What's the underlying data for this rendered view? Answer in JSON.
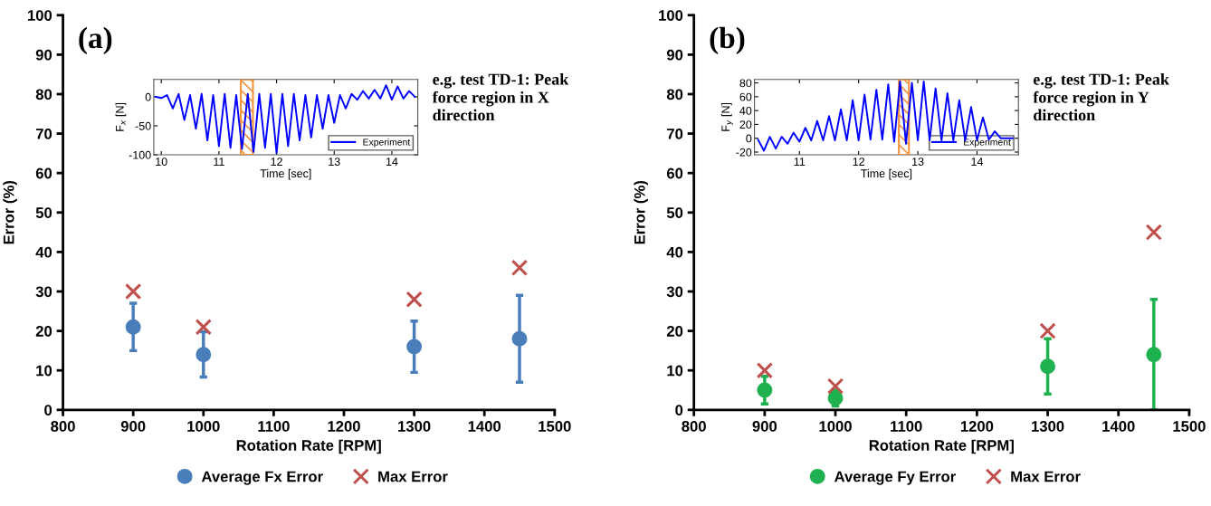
{
  "chart_data": [
    {
      "type": "scatter",
      "title": "(a)",
      "xlabel": "Rotation Rate [RPM]",
      "ylabel": "Error (%)",
      "xlim": [
        800,
        1500
      ],
      "xticks": [
        800,
        900,
        1000,
        1100,
        1200,
        1300,
        1400,
        1500
      ],
      "ylim": [
        0,
        100
      ],
      "yticks": [
        0,
        10,
        20,
        30,
        40,
        50,
        60,
        70,
        80,
        90,
        100
      ],
      "grid": false,
      "legend": "bottom",
      "annotations": [
        "e.g. test TD-1: Peak force region in X direction"
      ],
      "series": [
        {
          "name": "Average Fx Error",
          "color": "#4a7ebb",
          "marker": "circle",
          "x": [
            900,
            1000,
            1300,
            1450
          ],
          "values": [
            21,
            14,
            16,
            18
          ],
          "errors": [
            [
              15,
              27
            ],
            [
              8.3,
              19.8
            ],
            [
              9.5,
              22.5
            ],
            [
              7,
              29
            ]
          ]
        },
        {
          "name": "Max Error",
          "color": "#c0504d",
          "marker": "cross",
          "x": [
            900,
            1000,
            1300,
            1450
          ],
          "values": [
            30,
            21,
            28,
            36
          ]
        }
      ]
    },
    {
      "type": "line",
      "xlabel": "Time [sec]",
      "ylabel": "F$_{x}$ [N]",
      "xlim": [
        9.87,
        14.45
      ],
      "xticks": [
        10,
        11,
        12,
        13,
        14
      ],
      "ylim": [
        -100,
        30
      ],
      "yticks": [
        -100,
        -50,
        0
      ],
      "grid": false,
      "legend": "bottom right",
      "marker": "none",
      "line_style": "solid",
      "bands": [
        {
          "axis": "x",
          "from": 11.38,
          "to": 11.59,
          "color": "#f5923e"
        }
      ],
      "series": [
        {
          "name": "Experiment",
          "color": "#0000ff",
          "x": [
            9.9,
            10.0,
            10.1,
            10.2,
            10.3,
            10.4,
            10.5,
            10.6,
            10.7,
            10.8,
            10.9,
            11.0,
            11.1,
            11.2,
            11.3,
            11.4,
            11.5,
            11.6,
            11.7,
            11.8,
            11.9,
            12.0,
            12.1,
            12.2,
            12.3,
            12.4,
            12.5,
            12.6,
            12.7,
            12.8,
            12.9,
            13.0,
            13.1,
            13.2,
            13.3,
            13.4,
            13.5,
            13.6,
            13.7,
            13.8,
            13.9,
            14.0,
            14.1,
            14.2,
            14.3,
            14.4
          ],
          "values": [
            0,
            -2,
            3,
            -20,
            5,
            -40,
            3,
            -55,
            5,
            -75,
            3,
            -85,
            5,
            -88,
            3,
            -90,
            5,
            -95,
            5,
            -88,
            5,
            -97,
            5,
            -85,
            5,
            -75,
            3,
            -70,
            3,
            -55,
            3,
            -45,
            3,
            -20,
            5,
            -5,
            10,
            -3,
            12,
            -3,
            20,
            -5,
            18,
            -3,
            10,
            0
          ]
        }
      ]
    },
    {
      "type": "scatter",
      "title": "(b)",
      "xlabel": "Rotation Rate [RPM]",
      "ylabel": "Error (%)",
      "xlim": [
        800,
        1500
      ],
      "xticks": [
        800,
        900,
        1000,
        1100,
        1200,
        1300,
        1400,
        1500
      ],
      "ylim": [
        0,
        100
      ],
      "yticks": [
        0,
        10,
        20,
        30,
        40,
        50,
        60,
        70,
        80,
        90,
        100
      ],
      "grid": false,
      "legend": "bottom",
      "annotations": [
        "e.g. test TD-1: Peak force region in Y direction"
      ],
      "series": [
        {
          "name": "Average Fy Error",
          "color": "#1fb14f",
          "marker": "circle",
          "x": [
            900,
            1000,
            1300,
            1450
          ],
          "values": [
            5,
            3,
            11,
            14
          ],
          "errors": [
            [
              1.5,
              8.5
            ],
            [
              1,
              5
            ],
            [
              4,
              18
            ],
            [
              0,
              28
            ]
          ]
        },
        {
          "name": "Max Error",
          "color": "#c0504d",
          "marker": "cross",
          "x": [
            900,
            1000,
            1300,
            1450
          ],
          "values": [
            10,
            6,
            20,
            45
          ]
        }
      ]
    },
    {
      "type": "line",
      "xlabel": "Time [sec]",
      "ylabel": "F$_{y}$ [N]",
      "xlim": [
        10.24,
        14.7
      ],
      "xticks": [
        11,
        12,
        13,
        14
      ],
      "ylim": [
        -24,
        85
      ],
      "yticks": [
        -20,
        0,
        20,
        40,
        60,
        80
      ],
      "grid": false,
      "legend": "bottom right",
      "marker": "none",
      "line_style": "solid",
      "bands": [
        {
          "axis": "x",
          "from": 12.68,
          "to": 12.85,
          "color": "#f5923e"
        }
      ],
      "series": [
        {
          "name": "Experiment",
          "color": "#0000ff",
          "x": [
            10.3,
            10.4,
            10.5,
            10.6,
            10.7,
            10.8,
            10.9,
            11.0,
            11.1,
            11.2,
            11.3,
            11.4,
            11.5,
            11.6,
            11.7,
            11.8,
            11.9,
            12.0,
            12.1,
            12.2,
            12.3,
            12.4,
            12.5,
            12.6,
            12.7,
            12.8,
            12.9,
            13.0,
            13.1,
            13.2,
            13.3,
            13.4,
            13.5,
            13.6,
            13.7,
            13.8,
            13.9,
            14.0,
            14.1,
            14.2,
            14.3,
            14.4,
            14.5,
            14.6
          ],
          "values": [
            -2,
            -18,
            2,
            -15,
            2,
            -8,
            8,
            -5,
            15,
            -3,
            25,
            -3,
            32,
            -3,
            42,
            -3,
            55,
            -3,
            63,
            -2,
            70,
            -2,
            78,
            -5,
            82,
            -8,
            80,
            -3,
            82,
            -3,
            72,
            -3,
            65,
            -3,
            55,
            -3,
            45,
            -3,
            30,
            -2,
            10,
            0,
            0,
            0
          ]
        }
      ]
    }
  ]
}
